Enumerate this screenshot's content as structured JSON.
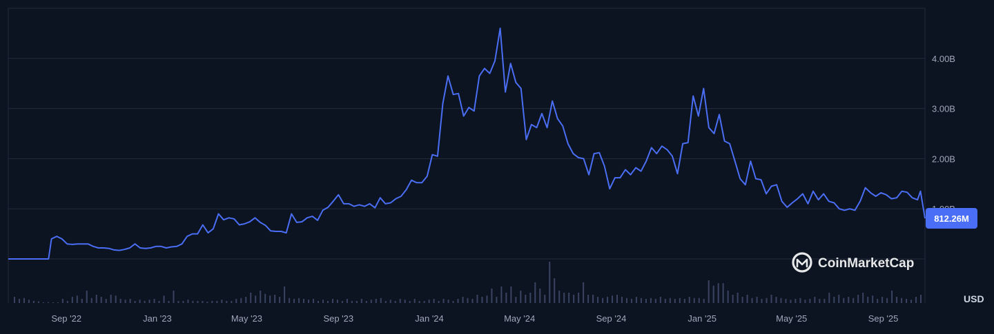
{
  "chart_data": {
    "type": "line",
    "unit": "USD",
    "current_value_label": "812.26M",
    "ylim": [
      0,
      4.6
    ],
    "y_ticks": [
      {
        "value": 1.0,
        "label": "1.00B"
      },
      {
        "value": 2.0,
        "label": "2.00B"
      },
      {
        "value": 3.0,
        "label": "3.00B"
      },
      {
        "value": 4.0,
        "label": "4.00B"
      }
    ],
    "x_ticks": [
      {
        "date": "2022-09-01",
        "label": "Sep '22"
      },
      {
        "date": "2023-01-01",
        "label": "Jan '23"
      },
      {
        "date": "2023-05-01",
        "label": "May '23"
      },
      {
        "date": "2023-09-01",
        "label": "Sep '23"
      },
      {
        "date": "2024-01-01",
        "label": "Jan '24"
      },
      {
        "date": "2024-05-01",
        "label": "May '24"
      },
      {
        "date": "2024-09-01",
        "label": "Sep '24"
      },
      {
        "date": "2025-01-01",
        "label": "Jan '25"
      },
      {
        "date": "2025-05-01",
        "label": "May '25"
      },
      {
        "date": "2025-09-01",
        "label": "Sep '25"
      }
    ],
    "x_range": [
      "2022-06-15",
      "2025-10-27"
    ],
    "grid": true,
    "watermark": "CoinMarketCap",
    "series": [
      {
        "color": "#4a6ef5",
        "points": [
          [
            "2022-06-15",
            0.0
          ],
          [
            "2022-07-01",
            0.0
          ],
          [
            "2022-07-15",
            0.0
          ],
          [
            "2022-08-01",
            0.0
          ],
          [
            "2022-08-08",
            0.0
          ],
          [
            "2022-08-12",
            0.4
          ],
          [
            "2022-08-19",
            0.45
          ],
          [
            "2022-08-26",
            0.4
          ],
          [
            "2022-09-02",
            0.3
          ],
          [
            "2022-09-09",
            0.29
          ],
          [
            "2022-09-16",
            0.3
          ],
          [
            "2022-09-23",
            0.3
          ],
          [
            "2022-09-30",
            0.3
          ],
          [
            "2022-10-07",
            0.25
          ],
          [
            "2022-10-14",
            0.22
          ],
          [
            "2022-10-21",
            0.22
          ],
          [
            "2022-10-28",
            0.21
          ],
          [
            "2022-11-04",
            0.18
          ],
          [
            "2022-11-11",
            0.17
          ],
          [
            "2022-11-18",
            0.19
          ],
          [
            "2022-11-25",
            0.22
          ],
          [
            "2022-12-02",
            0.3
          ],
          [
            "2022-12-09",
            0.22
          ],
          [
            "2022-12-16",
            0.21
          ],
          [
            "2022-12-23",
            0.22
          ],
          [
            "2022-12-30",
            0.25
          ],
          [
            "2023-01-06",
            0.25
          ],
          [
            "2023-01-13",
            0.22
          ],
          [
            "2023-01-20",
            0.24
          ],
          [
            "2023-01-27",
            0.25
          ],
          [
            "2023-02-03",
            0.3
          ],
          [
            "2023-02-10",
            0.45
          ],
          [
            "2023-02-17",
            0.5
          ],
          [
            "2023-02-24",
            0.5
          ],
          [
            "2023-03-03",
            0.68
          ],
          [
            "2023-03-10",
            0.52
          ],
          [
            "2023-03-17",
            0.6
          ],
          [
            "2023-03-24",
            0.9
          ],
          [
            "2023-03-31",
            0.78
          ],
          [
            "2023-04-07",
            0.82
          ],
          [
            "2023-04-14",
            0.8
          ],
          [
            "2023-04-21",
            0.68
          ],
          [
            "2023-04-28",
            0.7
          ],
          [
            "2023-05-05",
            0.74
          ],
          [
            "2023-05-12",
            0.82
          ],
          [
            "2023-05-19",
            0.73
          ],
          [
            "2023-05-26",
            0.67
          ],
          [
            "2023-06-02",
            0.56
          ],
          [
            "2023-06-09",
            0.55
          ],
          [
            "2023-06-16",
            0.55
          ],
          [
            "2023-06-23",
            0.52
          ],
          [
            "2023-06-30",
            0.9
          ],
          [
            "2023-07-07",
            0.73
          ],
          [
            "2023-07-14",
            0.74
          ],
          [
            "2023-07-21",
            0.82
          ],
          [
            "2023-07-28",
            0.85
          ],
          [
            "2023-08-04",
            0.77
          ],
          [
            "2023-08-11",
            0.97
          ],
          [
            "2023-08-18",
            1.03
          ],
          [
            "2023-08-25",
            1.15
          ],
          [
            "2023-09-01",
            1.28
          ],
          [
            "2023-09-08",
            1.1
          ],
          [
            "2023-09-15",
            1.1
          ],
          [
            "2023-09-22",
            1.05
          ],
          [
            "2023-09-29",
            1.08
          ],
          [
            "2023-10-06",
            1.05
          ],
          [
            "2023-10-13",
            1.1
          ],
          [
            "2023-10-20",
            1.02
          ],
          [
            "2023-10-27",
            1.22
          ],
          [
            "2023-11-03",
            1.1
          ],
          [
            "2023-11-10",
            1.12
          ],
          [
            "2023-11-17",
            1.2
          ],
          [
            "2023-11-24",
            1.25
          ],
          [
            "2023-12-01",
            1.38
          ],
          [
            "2023-12-08",
            1.57
          ],
          [
            "2023-12-15",
            1.52
          ],
          [
            "2023-12-22",
            1.52
          ],
          [
            "2023-12-29",
            1.65
          ],
          [
            "2024-01-05",
            2.08
          ],
          [
            "2024-01-12",
            2.05
          ],
          [
            "2024-01-19",
            3.1
          ],
          [
            "2024-01-26",
            3.65
          ],
          [
            "2024-02-02",
            3.28
          ],
          [
            "2024-02-09",
            3.3
          ],
          [
            "2024-02-16",
            2.85
          ],
          [
            "2024-02-23",
            3.02
          ],
          [
            "2024-03-01",
            2.95
          ],
          [
            "2024-03-08",
            3.65
          ],
          [
            "2024-03-15",
            3.8
          ],
          [
            "2024-03-22",
            3.7
          ],
          [
            "2024-03-29",
            3.95
          ],
          [
            "2024-04-05",
            4.6
          ],
          [
            "2024-04-12",
            3.33
          ],
          [
            "2024-04-19",
            3.9
          ],
          [
            "2024-04-26",
            3.52
          ],
          [
            "2024-05-03",
            3.4
          ],
          [
            "2024-05-10",
            2.38
          ],
          [
            "2024-05-17",
            2.68
          ],
          [
            "2024-05-24",
            2.62
          ],
          [
            "2024-05-31",
            2.9
          ],
          [
            "2024-06-07",
            2.62
          ],
          [
            "2024-06-14",
            3.15
          ],
          [
            "2024-06-21",
            2.8
          ],
          [
            "2024-06-28",
            2.65
          ],
          [
            "2024-07-05",
            2.3
          ],
          [
            "2024-07-12",
            2.1
          ],
          [
            "2024-07-19",
            2.02
          ],
          [
            "2024-07-26",
            2.0
          ],
          [
            "2024-08-02",
            1.68
          ],
          [
            "2024-08-09",
            2.1
          ],
          [
            "2024-08-16",
            2.12
          ],
          [
            "2024-08-23",
            1.85
          ],
          [
            "2024-08-30",
            1.4
          ],
          [
            "2024-09-06",
            1.62
          ],
          [
            "2024-09-13",
            1.62
          ],
          [
            "2024-09-20",
            1.78
          ],
          [
            "2024-09-27",
            1.68
          ],
          [
            "2024-10-04",
            1.82
          ],
          [
            "2024-10-11",
            1.75
          ],
          [
            "2024-10-18",
            1.95
          ],
          [
            "2024-10-25",
            2.22
          ],
          [
            "2024-11-01",
            2.1
          ],
          [
            "2024-11-08",
            2.25
          ],
          [
            "2024-11-15",
            2.18
          ],
          [
            "2024-11-22",
            2.05
          ],
          [
            "2024-11-29",
            1.7
          ],
          [
            "2024-12-06",
            2.3
          ],
          [
            "2024-12-13",
            2.32
          ],
          [
            "2024-12-20",
            3.25
          ],
          [
            "2024-12-27",
            2.85
          ],
          [
            "2025-01-03",
            3.4
          ],
          [
            "2025-01-10",
            2.62
          ],
          [
            "2025-01-17",
            2.5
          ],
          [
            "2025-01-24",
            2.88
          ],
          [
            "2025-01-31",
            2.35
          ],
          [
            "2025-02-07",
            2.3
          ],
          [
            "2025-02-14",
            1.95
          ],
          [
            "2025-02-21",
            1.6
          ],
          [
            "2025-02-28",
            1.48
          ],
          [
            "2025-03-07",
            1.95
          ],
          [
            "2025-03-14",
            1.6
          ],
          [
            "2025-03-21",
            1.58
          ],
          [
            "2025-03-28",
            1.3
          ],
          [
            "2025-04-04",
            1.45
          ],
          [
            "2025-04-11",
            1.48
          ],
          [
            "2025-04-18",
            1.15
          ],
          [
            "2025-04-25",
            1.03
          ],
          [
            "2025-05-02",
            1.12
          ],
          [
            "2025-05-09",
            1.2
          ],
          [
            "2025-05-16",
            1.3
          ],
          [
            "2025-05-23",
            1.1
          ],
          [
            "2025-05-30",
            1.35
          ],
          [
            "2025-06-06",
            1.18
          ],
          [
            "2025-06-13",
            1.3
          ],
          [
            "2025-06-20",
            1.15
          ],
          [
            "2025-06-27",
            1.12
          ],
          [
            "2025-07-04",
            1.0
          ],
          [
            "2025-07-11",
            0.97
          ],
          [
            "2025-07-18",
            1.0
          ],
          [
            "2025-07-25",
            0.97
          ],
          [
            "2025-08-01",
            1.15
          ],
          [
            "2025-08-08",
            1.42
          ],
          [
            "2025-08-15",
            1.32
          ],
          [
            "2025-08-22",
            1.25
          ],
          [
            "2025-08-29",
            1.32
          ],
          [
            "2025-09-05",
            1.28
          ],
          [
            "2025-09-12",
            1.2
          ],
          [
            "2025-09-19",
            1.22
          ],
          [
            "2025-09-26",
            1.35
          ],
          [
            "2025-10-03",
            1.33
          ],
          [
            "2025-10-10",
            1.22
          ],
          [
            "2025-10-17",
            1.18
          ],
          [
            "2025-10-21",
            1.35
          ],
          [
            "2025-10-27",
            0.81
          ]
        ]
      }
    ],
    "volume_bars_max": 1.0,
    "volume_bars": [
      0.15,
      0.1,
      0.12,
      0.08,
      0.05,
      0.04,
      0.0,
      0.02,
      0.0,
      0.0,
      0.1,
      0.05,
      0.15,
      0.18,
      0.1,
      0.3,
      0.12,
      0.2,
      0.15,
      0.1,
      0.2,
      0.18,
      0.1,
      0.08,
      0.1,
      0.05,
      0.08,
      0.05,
      0.08,
      0.1,
      0.05,
      0.18,
      0.05,
      0.3,
      0.05,
      0.05,
      0.08,
      0.05,
      0.05,
      0.05,
      0.03,
      0.05,
      0.05,
      0.08,
      0.05,
      0.05,
      0.1,
      0.12,
      0.15,
      0.25,
      0.18,
      0.3,
      0.22,
      0.18,
      0.2,
      0.15,
      0.4,
      0.12,
      0.1,
      0.12,
      0.1,
      0.08,
      0.1,
      0.05,
      0.08,
      0.05,
      0.1,
      0.08,
      0.05,
      0.1,
      0.05,
      0.05,
      0.1,
      0.05,
      0.08,
      0.1,
      0.12,
      0.05,
      0.08,
      0.05,
      0.1,
      0.08,
      0.05,
      0.1,
      0.05,
      0.05,
      0.08,
      0.1,
      0.05,
      0.1,
      0.08,
      0.05,
      0.1,
      0.15,
      0.12,
      0.1,
      0.2,
      0.15,
      0.18,
      0.35,
      0.15,
      0.4,
      0.25,
      0.4,
      0.15,
      0.3,
      0.2,
      0.25,
      0.5,
      0.35,
      0.2,
      1.0,
      0.6,
      0.3,
      0.25,
      0.25,
      0.2,
      0.25,
      0.5,
      0.2,
      0.2,
      0.15,
      0.12,
      0.15,
      0.18,
      0.2,
      0.15,
      0.12,
      0.1,
      0.15,
      0.12,
      0.1,
      0.12,
      0.1,
      0.15,
      0.1,
      0.12,
      0.1,
      0.12,
      0.1,
      0.15,
      0.12,
      0.12,
      0.1,
      0.55,
      0.42,
      0.48,
      0.48,
      0.3,
      0.2,
      0.25,
      0.15,
      0.2,
      0.12,
      0.15,
      0.1,
      0.12,
      0.2,
      0.15,
      0.12,
      0.1,
      0.08,
      0.1,
      0.12,
      0.08,
      0.1,
      0.15,
      0.1,
      0.1,
      0.25,
      0.15,
      0.2,
      0.12,
      0.15,
      0.12,
      0.2,
      0.25,
      0.15,
      0.18,
      0.1,
      0.15,
      0.12,
      0.3,
      0.15,
      0.12,
      0.1,
      0.08,
      0.15,
      0.2
    ]
  }
}
